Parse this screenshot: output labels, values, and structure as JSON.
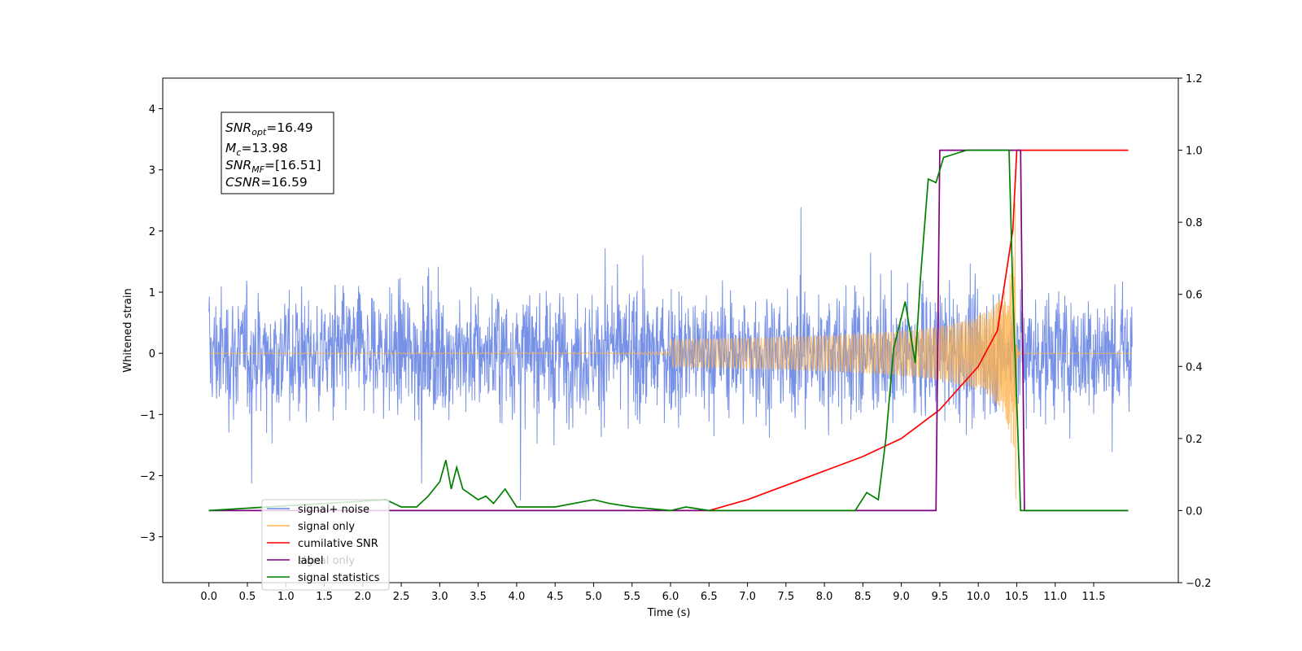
{
  "chart_data": {
    "type": "line",
    "xlabel": "Time (s)",
    "ylabel": "Whitened strain",
    "xlim": [
      -0.6,
      12.6
    ],
    "ylim": [
      -3.75,
      4.5
    ],
    "y2lim": [
      -0.2,
      1.2
    ],
    "grid": false,
    "legend_position": "lower-left",
    "x_ticks": [
      "0.0",
      "0.5",
      "1.0",
      "1.5",
      "2.0",
      "2.5",
      "3.0",
      "3.5",
      "4.0",
      "4.5",
      "5.0",
      "5.5",
      "6.0",
      "6.5",
      "7.0",
      "7.5",
      "8.0",
      "8.5",
      "9.0",
      "9.5",
      "10.0",
      "10.5",
      "11.0",
      "11.5"
    ],
    "y_ticks": [
      "4",
      "3",
      "2",
      "1",
      "0",
      "−1",
      "−2",
      "−3"
    ],
    "y2_ticks": [
      "1.2",
      "1.0",
      "0.8",
      "0.6",
      "0.4",
      "0.2",
      "0.0",
      "−0.2"
    ],
    "stats": {
      "snr_opt": "SNR",
      "snr_opt_sub": "opt",
      "snr_opt_value": "=16.49",
      "mc": "M",
      "mc_sub": "c",
      "mc_value": "=13.98",
      "snr_mf": "SNR",
      "snr_mf_sub": "MF",
      "snr_mf_value": "=[16.51]",
      "csnr": "CSNR",
      "csnr_value": "=16.59"
    },
    "series": [
      {
        "name": "signal+ noise",
        "color": "#6b88e5",
        "axis": "left",
        "noise_amplitude": 1.5,
        "x_range": [
          0.0,
          12.0
        ]
      },
      {
        "name": "signal only",
        "color": "#ffb34d",
        "axis": "left",
        "chirp_end": 10.5
      },
      {
        "name": "cumilative SNR",
        "color": "#ff0000",
        "axis": "right",
        "x": [
          6.5,
          7.0,
          7.5,
          8.0,
          8.5,
          9.0,
          9.5,
          10.0,
          10.25,
          10.45,
          10.5,
          10.55,
          11.95
        ],
        "y": [
          0.0,
          0.03,
          0.07,
          0.11,
          0.15,
          0.2,
          0.28,
          0.4,
          0.5,
          0.78,
          1.0,
          1.0,
          1.0
        ]
      },
      {
        "name": "label",
        "color": "#800080",
        "axis": "right",
        "x": [
          0.0,
          9.45,
          9.5,
          10.55,
          10.6,
          11.95
        ],
        "y": [
          0.0,
          0.0,
          1.0,
          1.0,
          0.0,
          0.0
        ]
      },
      {
        "name": "signal only",
        "color": "#999999",
        "axis": "right",
        "legend_hidden": true
      },
      {
        "name": "signal statistics",
        "color": "#008000",
        "axis": "right",
        "x": [
          0.0,
          2.3,
          2.5,
          2.7,
          2.85,
          3.0,
          3.08,
          3.15,
          3.22,
          3.3,
          3.5,
          3.6,
          3.7,
          3.85,
          4.0,
          4.5,
          5.0,
          5.2,
          5.5,
          6.0,
          6.2,
          6.5,
          7.0,
          8.0,
          8.4,
          8.55,
          8.7,
          8.8,
          8.9,
          9.05,
          9.18,
          9.25,
          9.35,
          9.45,
          9.55,
          9.7,
          9.85,
          10.0,
          10.3,
          10.4,
          10.45,
          10.5,
          10.55,
          10.6,
          11.95
        ],
        "y": [
          0.0,
          0.03,
          0.01,
          0.01,
          0.04,
          0.08,
          0.14,
          0.06,
          0.12,
          0.06,
          0.03,
          0.04,
          0.02,
          0.06,
          0.01,
          0.01,
          0.03,
          0.02,
          0.01,
          0.0,
          0.01,
          0.0,
          0.0,
          0.0,
          0.0,
          0.05,
          0.03,
          0.2,
          0.45,
          0.58,
          0.41,
          0.65,
          0.92,
          0.91,
          0.98,
          0.99,
          1.0,
          1.0,
          1.0,
          1.0,
          0.6,
          0.3,
          0.0,
          0.0,
          0.0
        ]
      }
    ]
  }
}
